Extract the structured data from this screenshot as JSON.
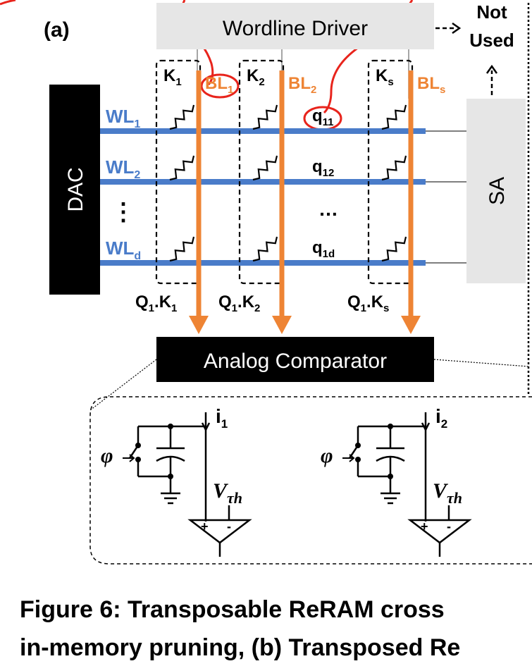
{
  "panel_label": "(a)",
  "blocks": {
    "wordline_driver": "Wordline Driver",
    "not_used_line1": "Not",
    "not_used_line2": "Used",
    "dac": "DAC",
    "sa": "SA",
    "analog_comparator": "Analog Comparator"
  },
  "columns": [
    {
      "key": "K",
      "key_sub": "1",
      "bitline": "BL",
      "bitline_sub": "1",
      "output": "Q",
      "output_sub": "1",
      "output_key": "K",
      "output_key_sub": "1"
    },
    {
      "key": "K",
      "key_sub": "2",
      "bitline": "BL",
      "bitline_sub": "2",
      "output": "Q",
      "output_sub": "1",
      "output_key": "K",
      "output_key_sub": "2"
    },
    {
      "key": "K",
      "key_sub": "s",
      "bitline": "BL",
      "bitline_sub": "s",
      "output": "Q",
      "output_sub": "1",
      "output_key": "K",
      "output_key_sub": "s"
    }
  ],
  "wordlines": [
    {
      "label": "WL",
      "sub": "1",
      "query": "q",
      "query_sub": "11"
    },
    {
      "label": "WL",
      "sub": "2",
      "query": "q",
      "query_sub": "12"
    },
    {
      "label": "WL",
      "sub": "d",
      "query": "q",
      "query_sub": "1d"
    }
  ],
  "ellipsis_v": "⋮",
  "ellipsis_h": "…",
  "comparators": [
    {
      "current": "i",
      "current_sub": "1",
      "switch": "φ",
      "vth": "V",
      "vth_sub": "τh",
      "plus": "+",
      "minus": "-"
    },
    {
      "current": "i",
      "current_sub": "2",
      "switch": "φ",
      "vth": "V",
      "vth_sub": "τh",
      "plus": "+",
      "minus": "-"
    }
  ],
  "caption_line1": "Figure 6: Transposable ReRAM cross",
  "caption_line2": "in-memory pruning, (b) Transposed Re",
  "colors": {
    "wordline": "#4a7cc9",
    "bitline": "#ee8434",
    "annotation": "#e8241c",
    "block_gray": "#e6e6e6",
    "block_black": "#000000"
  }
}
